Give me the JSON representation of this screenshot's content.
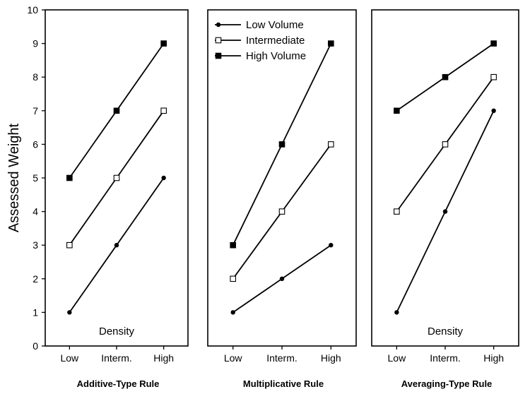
{
  "chart_data": [
    {
      "type": "line",
      "title": "Additive-Type Rule",
      "ylabel": "Assessed Weight",
      "xlabel": "",
      "annotation": "Density",
      "categories": [
        "Low",
        "Interm.",
        "High"
      ],
      "ylim": [
        0,
        10
      ],
      "yticks": [
        0,
        1,
        2,
        3,
        4,
        5,
        6,
        7,
        8,
        9,
        10
      ],
      "series": [
        {
          "name": "Low Volume",
          "marker": "filled-circle",
          "values": [
            1,
            3,
            5
          ]
        },
        {
          "name": "Intermediate",
          "marker": "open-square",
          "values": [
            3,
            5,
            7
          ]
        },
        {
          "name": "High Volume",
          "marker": "filled-square",
          "values": [
            5,
            7,
            9
          ]
        }
      ]
    },
    {
      "type": "line",
      "title": "Multiplicative Rule",
      "xlabel": "",
      "categories": [
        "Low",
        "Interm.",
        "High"
      ],
      "ylim": [
        0,
        10
      ],
      "legend": "top-left",
      "series": [
        {
          "name": "Low Volume",
          "marker": "filled-circle",
          "values": [
            1,
            2,
            3
          ]
        },
        {
          "name": "Intermediate",
          "marker": "open-square",
          "values": [
            2,
            4,
            6
          ]
        },
        {
          "name": "High Volume",
          "marker": "filled-square",
          "values": [
            3,
            6,
            9
          ]
        }
      ]
    },
    {
      "type": "line",
      "title": "Averaging-Type Rule",
      "xlabel": "",
      "annotation": "Density",
      "categories": [
        "Low",
        "Interm.",
        "High"
      ],
      "ylim": [
        0,
        10
      ],
      "series": [
        {
          "name": "Low Volume",
          "marker": "filled-circle",
          "values": [
            1,
            4,
            7
          ]
        },
        {
          "name": "Intermediate",
          "marker": "open-square",
          "values": [
            4,
            6,
            8
          ]
        },
        {
          "name": "High Volume",
          "marker": "filled-square",
          "values": [
            7,
            8,
            9
          ]
        }
      ]
    }
  ],
  "style": {
    "line_color": "#000000",
    "background": "#ffffff"
  }
}
